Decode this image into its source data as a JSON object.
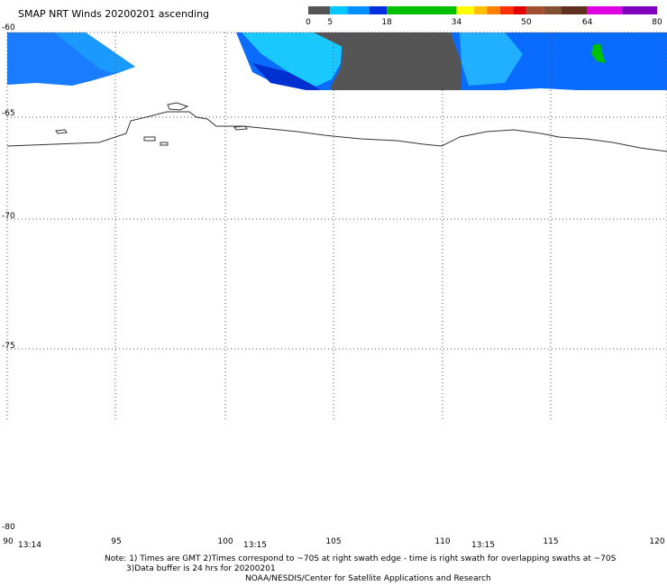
{
  "header": {
    "title": "SMAP NRT Winds 20200201 ascending"
  },
  "colorbar": {
    "ticks": [
      "0",
      "5",
      "18",
      "34",
      "50",
      "64",
      "80"
    ],
    "tick_values": [
      0,
      5,
      18,
      34,
      50,
      64,
      80
    ],
    "segments": [
      {
        "from": 0,
        "to": 5,
        "color": "#555555"
      },
      {
        "from": 5,
        "to": 9,
        "color": "#00c8ff"
      },
      {
        "from": 9,
        "to": 14,
        "color": "#0090ff"
      },
      {
        "from": 14,
        "to": 18,
        "color": "#0030e0"
      },
      {
        "from": 18,
        "to": 34,
        "color": "#00c000"
      },
      {
        "from": 34,
        "to": 38,
        "color": "#ffff00"
      },
      {
        "from": 38,
        "to": 41,
        "color": "#ffc000"
      },
      {
        "from": 41,
        "to": 44,
        "color": "#ff8000"
      },
      {
        "from": 44,
        "to": 47,
        "color": "#ff3000"
      },
      {
        "from": 47,
        "to": 50,
        "color": "#e00000"
      },
      {
        "from": 50,
        "to": 54,
        "color": "#a05030"
      },
      {
        "from": 54,
        "to": 58,
        "color": "#805030"
      },
      {
        "from": 58,
        "to": 64,
        "color": "#603020"
      },
      {
        "from": 64,
        "to": 72,
        "color": "#e000e0"
      },
      {
        "from": 72,
        "to": 80,
        "color": "#8000c0"
      }
    ]
  },
  "map": {
    "lat_labels": [
      "-60",
      "-65",
      "-70",
      "-75",
      "-80"
    ],
    "lon_labels": [
      "90",
      "95",
      "100",
      "105",
      "110",
      "115",
      "120"
    ],
    "time_labels": [
      "13:14",
      "13:15",
      "13:15"
    ]
  },
  "notes": {
    "line1": "Note: 1) Times are GMT 2)Times correspond to ~70S at right swath edge - time is right swath for overlapping swaths at ~70S",
    "line2": "3)Data buffer is 24 hrs for 20200201",
    "line3": "NOAA/NESDIS/Center for Satellite Applications and Research"
  }
}
